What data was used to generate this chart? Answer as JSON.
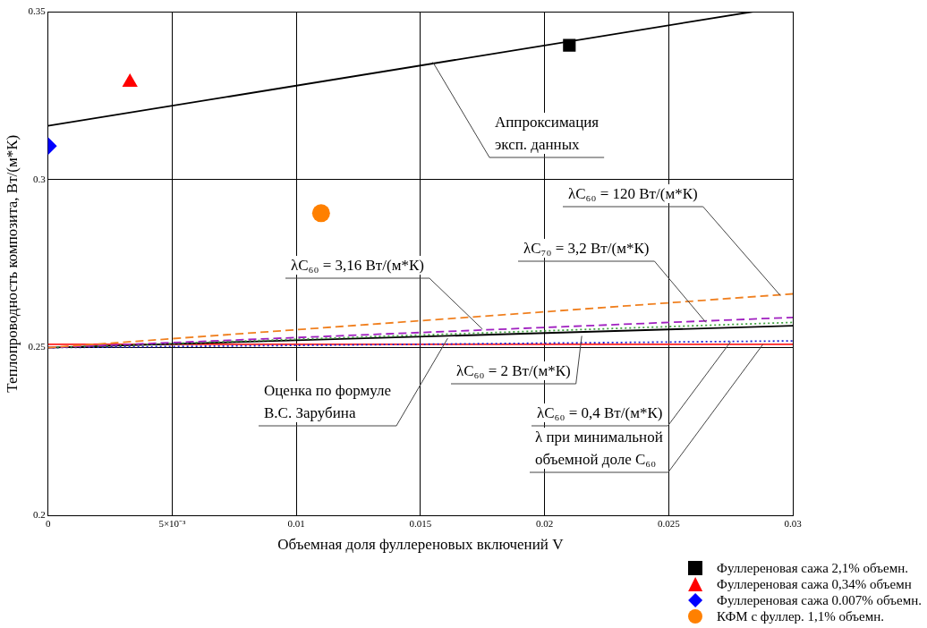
{
  "chart_data": {
    "type": "line",
    "xlabel": "Объемная доля фуллереновых включений V",
    "ylabel": "Теплопроводность композита, Вт/(м*К)",
    "xlim": [
      0,
      0.03
    ],
    "xticks": [
      0,
      {
        "value": 0.005,
        "label": "5×10⁻³"
      },
      0.01,
      0.015,
      0.02,
      0.025,
      0.03
    ],
    "ylim": [
      0.2,
      0.35
    ],
    "yticks": [
      0.2,
      0.25,
      0.3,
      0.35
    ],
    "grid": true,
    "legend": "bottom right",
    "series": [
      {
        "type": "line",
        "color": "#000000",
        "line_style": "solid",
        "x": [
          0,
          0.0284
        ],
        "values": [
          0.316,
          0.35
        ]
      },
      {
        "type": "line",
        "color": "#f08020",
        "line_style": "dashed",
        "x": [
          0,
          0.03
        ],
        "values": [
          0.25,
          0.266
        ]
      },
      {
        "type": "line",
        "color": "#a020c0",
        "line_style": "dashed",
        "x": [
          0,
          0.03
        ],
        "values": [
          0.25,
          0.259
        ]
      },
      {
        "type": "line",
        "color": "#40a040",
        "line_style": "dotted",
        "x": [
          0,
          0.03
        ],
        "values": [
          0.25,
          0.2575
        ]
      },
      {
        "type": "line",
        "color": "#000000",
        "line_style": "solid",
        "x": [
          0,
          0.03
        ],
        "values": [
          0.25,
          0.2565
        ]
      },
      {
        "type": "line",
        "color": "#2020d0",
        "line_style": "dotted",
        "x": [
          0,
          0.03
        ],
        "values": [
          0.25,
          0.252
        ]
      },
      {
        "type": "line",
        "color": "#ff2020",
        "line_style": "solid",
        "x": [
          0,
          0.03
        ],
        "values": [
          0.251,
          0.251
        ]
      },
      {
        "type": "scatter",
        "name": "Фуллереновая сажа 2,1% объемн.",
        "color": "#000000",
        "marker": "square",
        "x": [
          0.021
        ],
        "values": [
          0.34
        ]
      },
      {
        "type": "scatter",
        "name": "Фуллереновая сажа 0,34% объемн",
        "color": "#ff0000",
        "marker": "triangle",
        "x": [
          0.0033
        ],
        "values": [
          0.329
        ]
      },
      {
        "type": "scatter",
        "name": "Фуллереновая сажа 0.007% объемн.",
        "color": "#0000ff",
        "marker": "diamond",
        "x": [
          0
        ],
        "values": [
          0.31
        ]
      },
      {
        "type": "scatter",
        "name": "КФМ с фуллер. 1,1% объемн.",
        "color": "#ff8000",
        "marker": "circle",
        "x": [
          0.011
        ],
        "values": [
          0.29
        ]
      }
    ],
    "annotations": [
      {
        "text": "Аппроксимация\nэксп. данных",
        "x": 0.0155,
        "y": 0.335
      },
      {
        "text": "λC₆₀ = 120 Вт/(м*К)",
        "x": 0.0295,
        "y": 0.2655
      },
      {
        "text": "λC₇₀ = 3,2 Вт/(м*К)",
        "x": 0.0265,
        "y": 0.2575
      },
      {
        "text": "λC₆₀ = 3,16 Вт/(м*К)",
        "x": 0.0175,
        "y": 0.2555
      },
      {
        "text": "λC₆₀ = 2 Вт/(м*К)",
        "x": 0.0215,
        "y": 0.2535
      },
      {
        "text": "Оценка по формуле\nВ.С. Зарубина",
        "x": 0.0161,
        "y": 0.2528
      },
      {
        "text": "λC₆₀ = 0,4 Вт/(м*К)",
        "x": 0.0275,
        "y": 0.2518
      },
      {
        "text": "λ при минимальной\nобъемной доле C₆₀",
        "x": 0.0288,
        "y": 0.251
      }
    ]
  }
}
